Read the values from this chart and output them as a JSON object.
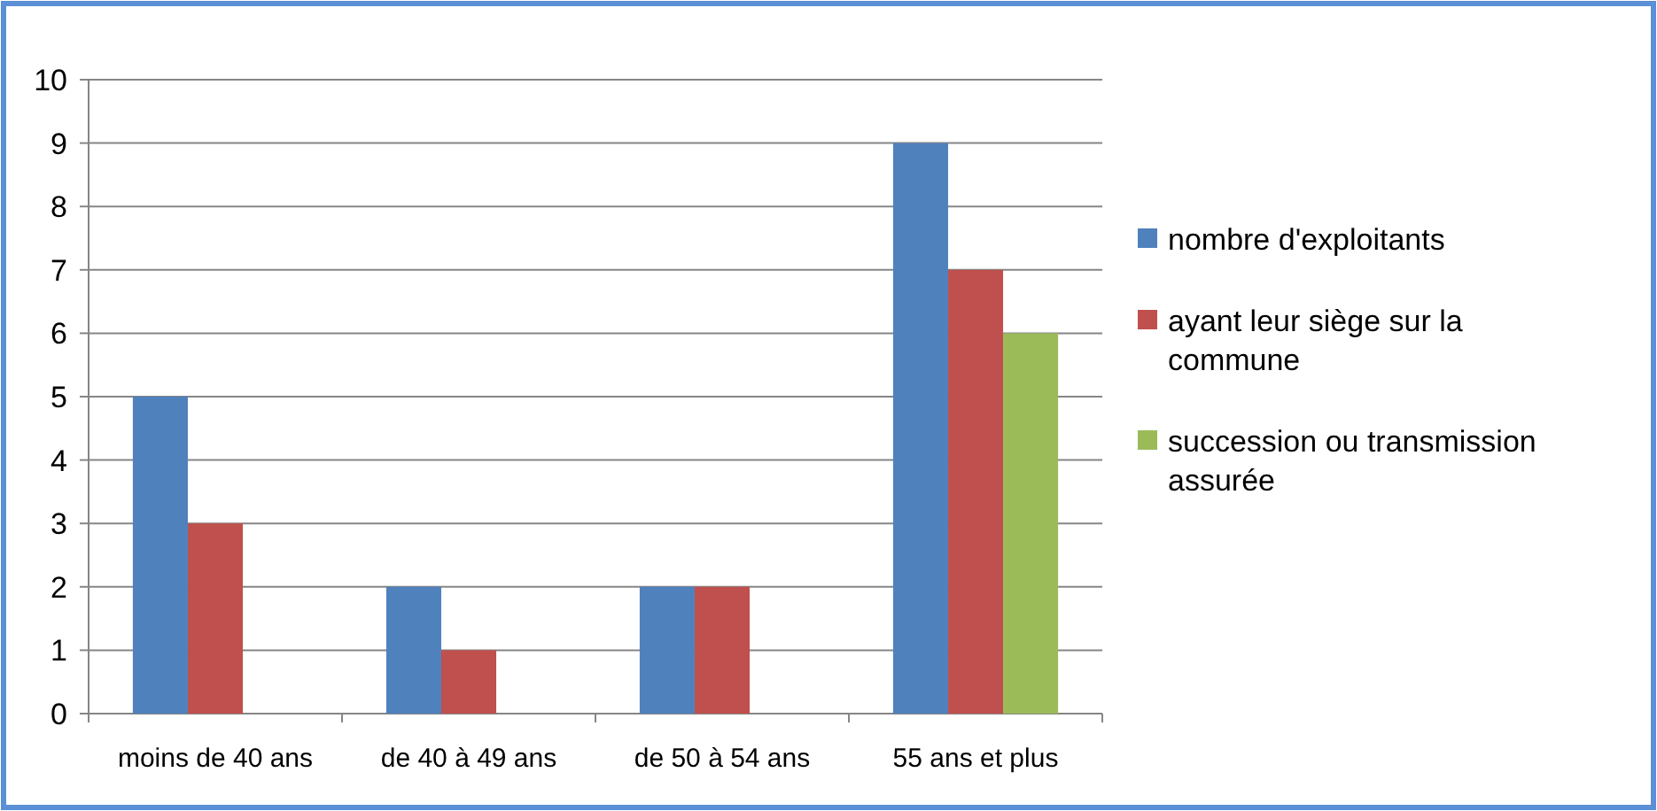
{
  "chart_data": {
    "type": "bar",
    "categories": [
      "moins de 40 ans",
      "de 40 à 49 ans",
      "de 50 à 54 ans",
      "55 ans et plus"
    ],
    "series": [
      {
        "name": "nombre d'exploitants",
        "color": "#4f81bd",
        "values": [
          5,
          2,
          2,
          9
        ]
      },
      {
        "name": "ayant leur siège sur la commune",
        "color": "#c0504d",
        "values": [
          3,
          1,
          2,
          7
        ]
      },
      {
        "name": "succession ou transmission assurée",
        "color": "#9bbb59",
        "values": [
          null,
          null,
          null,
          6
        ]
      }
    ],
    "ylim": [
      0,
      10
    ],
    "yticks": [
      0,
      1,
      2,
      3,
      4,
      5,
      6,
      7,
      8,
      9,
      10
    ],
    "grid": "y",
    "legend": "right"
  }
}
